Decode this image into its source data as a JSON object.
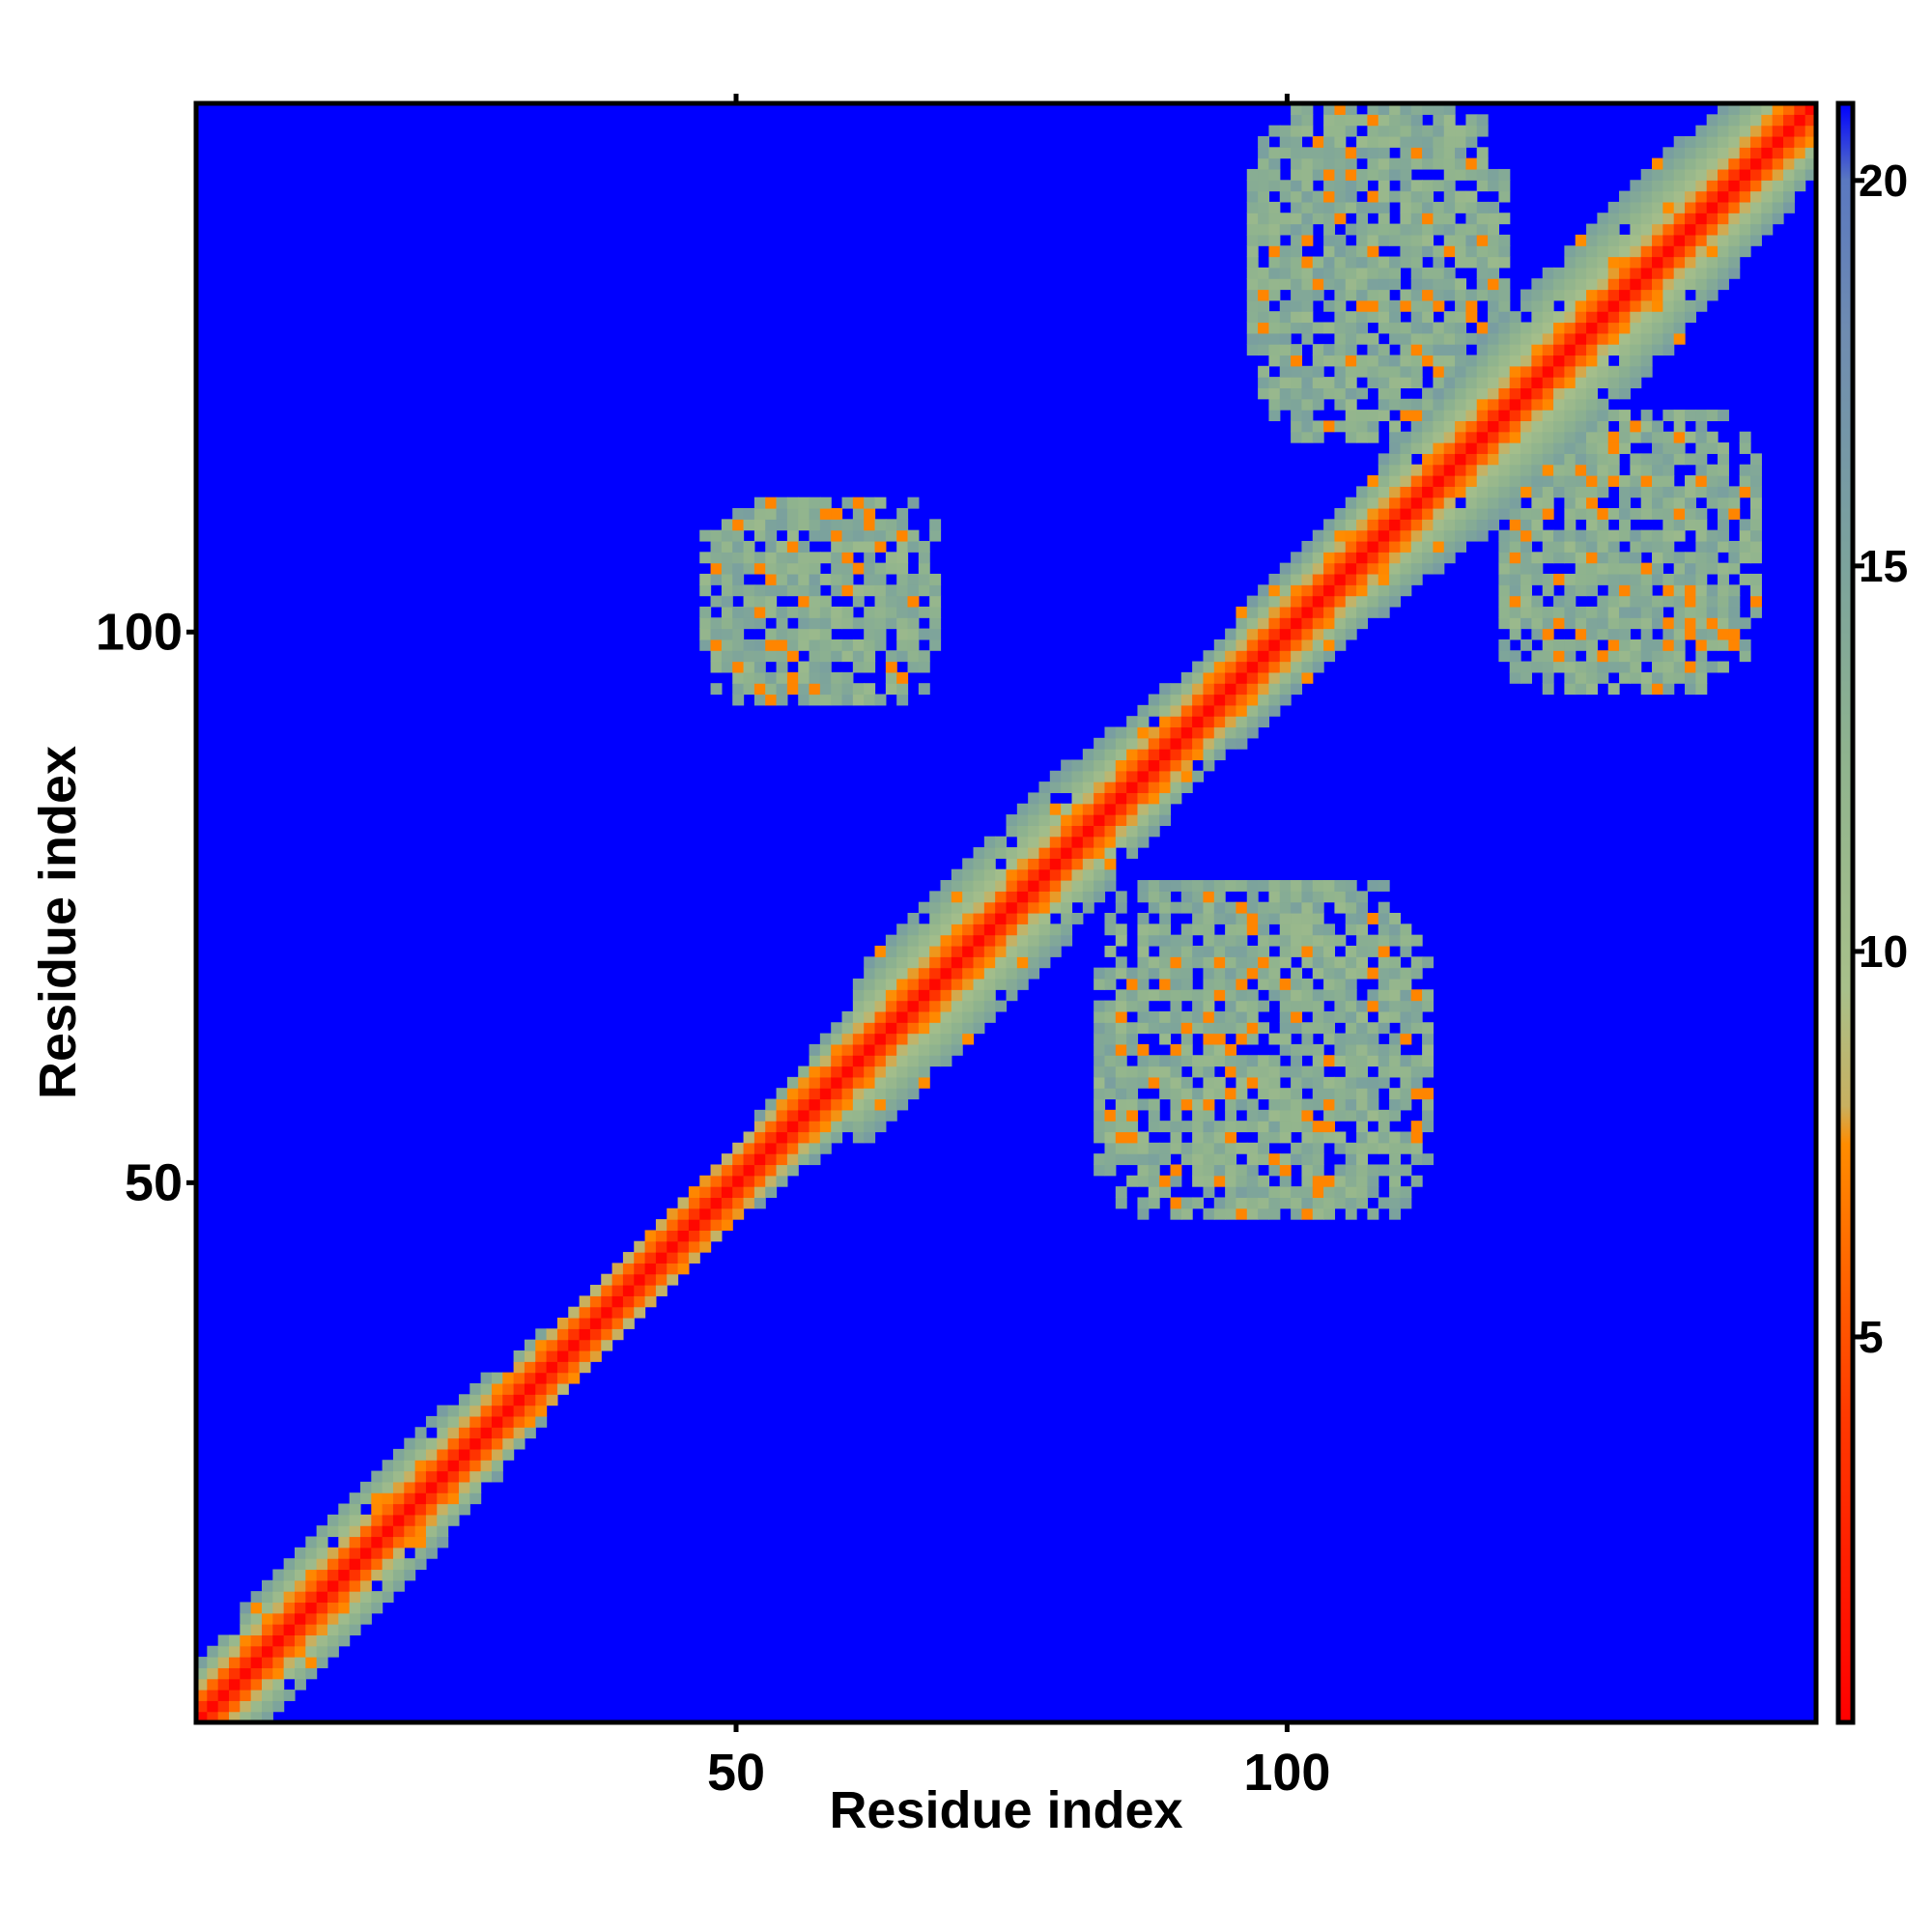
{
  "chart_data": {
    "type": "heatmap",
    "title": "",
    "xlabel": "Residue index",
    "ylabel": "Residue index",
    "n_residues": 148,
    "x_range": [
      1,
      148
    ],
    "y_range": [
      1,
      148
    ],
    "x_ticks": [
      50,
      100
    ],
    "y_ticks": [
      50,
      100
    ],
    "colorbar": {
      "range": [
        0,
        21
      ],
      "ticks": [
        5,
        10,
        15,
        20
      ],
      "stops": [
        {
          "value": 0,
          "color": "#ff0000"
        },
        {
          "value": 4,
          "color": "#ff3a00"
        },
        {
          "value": 7.5,
          "color": "#ff8c00"
        },
        {
          "value": 8.0,
          "color": "#c8b060"
        },
        {
          "value": 9.5,
          "color": "#a8c08a"
        },
        {
          "value": 12.5,
          "color": "#8fb38e"
        },
        {
          "value": 15,
          "color": "#7ca39c"
        },
        {
          "value": 18,
          "color": "#6f8cb0"
        },
        {
          "value": 20,
          "color": "#5a78c0"
        },
        {
          "value": 21,
          "color": "#0000ff"
        }
      ]
    },
    "background_value": 21,
    "background_color": "#0000ff",
    "description_domains": [
      {
        "region": "diagonal",
        "range": [
          1,
          148
        ],
        "values": "distance increases from ~0 on the diagonal to ~16 at |i-j|=7"
      },
      {
        "region": "contact-cluster",
        "x_range": [
          47,
          68
        ],
        "y_range": [
          94,
          112
        ],
        "mean_value": 11.5
      },
      {
        "region": "contact-cluster",
        "x_range": [
          83,
          113
        ],
        "y_range": [
          47,
          77
        ],
        "mean_value": 11.5
      },
      {
        "region": "contact-cluster",
        "x_range": [
          97,
          120
        ],
        "y_range": [
          118,
          148
        ],
        "mean_value": 11.5
      },
      {
        "region": "contact-cluster",
        "x_range": [
          120,
          143
        ],
        "y_range": [
          95,
          120
        ],
        "mean_value": 11.5
      }
    ]
  }
}
